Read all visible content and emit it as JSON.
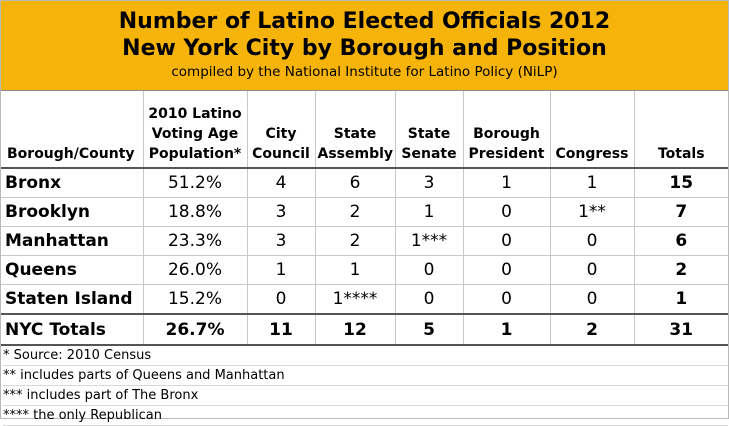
{
  "header": {
    "title_line1": "Number of Latino Elected Officials 2012",
    "title_line2": "New York City by Borough and Position",
    "subtitle": "compiled by the National Institute for Latino Policy (NiLP)"
  },
  "columns": [
    "Borough/County",
    "2010 Latino Voting Age Population*",
    "City Council",
    "State Assembly",
    "State Senate",
    "Borough President",
    "Congress",
    "Totals"
  ],
  "rows": [
    [
      "Bronx",
      "51.2%",
      "4",
      "6",
      "3",
      "1",
      "1",
      "15"
    ],
    [
      "Brooklyn",
      "18.8%",
      "3",
      "2",
      "1",
      "0",
      "1**",
      "7"
    ],
    [
      "Manhattan",
      "23.3%",
      "3",
      "2",
      "1***",
      "0",
      "0",
      "6"
    ],
    [
      "Queens",
      "26.0%",
      "1",
      "1",
      "0",
      "0",
      "0",
      "2"
    ],
    [
      "Staten Island",
      "15.2%",
      "0",
      "1****",
      "0",
      "0",
      "0",
      "1"
    ]
  ],
  "nyc_totals": [
    "NYC Totals",
    "26.7%",
    "11",
    "12",
    "5",
    "1",
    "2",
    "31"
  ],
  "notes": [
    "* Source: 2010 Census",
    "** includes parts of Queens and Manhattan",
    "*** includes part of The Bronx",
    "**** the only Republican"
  ],
  "colors": {
    "banner": "#f6b40a"
  }
}
